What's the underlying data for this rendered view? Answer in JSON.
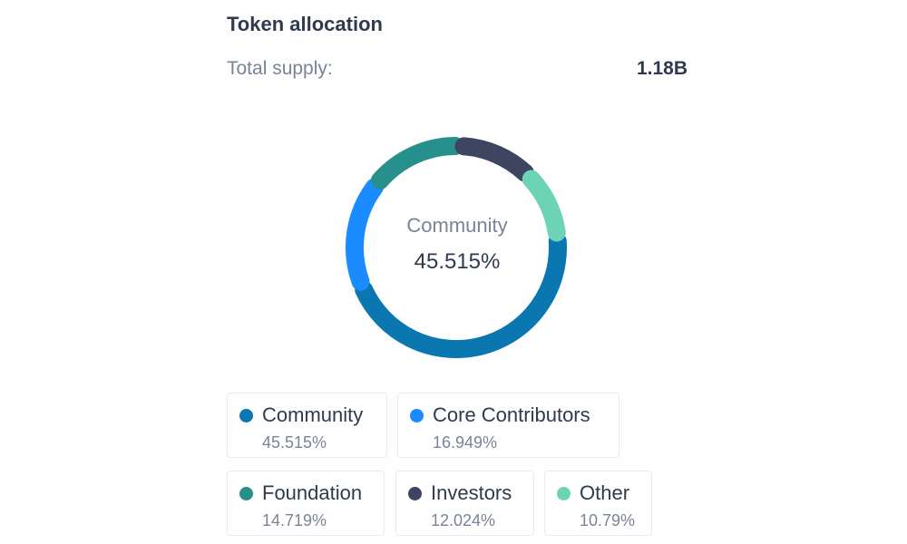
{
  "header": {
    "title": "Token allocation",
    "supply_label": "Total supply:",
    "supply_value": "1.18B"
  },
  "center": {
    "label": "Community",
    "value": "45.515%"
  },
  "chart_data": {
    "type": "pie",
    "title": "Token allocation",
    "slices": [
      {
        "name": "Community",
        "value": 45.515,
        "label": "45.515%",
        "color": "#0b77b1"
      },
      {
        "name": "Core Contributors",
        "value": 16.949,
        "label": "16.949%",
        "color": "#1a8cff"
      },
      {
        "name": "Foundation",
        "value": 14.719,
        "label": "14.719%",
        "color": "#278f8c"
      },
      {
        "name": "Investors",
        "value": 12.024,
        "label": "12.024%",
        "color": "#3d4560"
      },
      {
        "name": "Other",
        "value": 10.79,
        "label": "10.79%",
        "color": "#6dd3b5"
      }
    ],
    "legend": [
      {
        "name": "Community",
        "pct": "45.515%",
        "color": "#0b77b1"
      },
      {
        "name": "Core Contributors",
        "pct": "16.949%",
        "color": "#1a8cff"
      },
      {
        "name": "Foundation",
        "pct": "14.719%",
        "color": "#278f8c"
      },
      {
        "name": "Investors",
        "pct": "12.024%",
        "color": "#3d4560"
      },
      {
        "name": "Other",
        "pct": "10.79%",
        "color": "#6dd3b5"
      }
    ]
  }
}
